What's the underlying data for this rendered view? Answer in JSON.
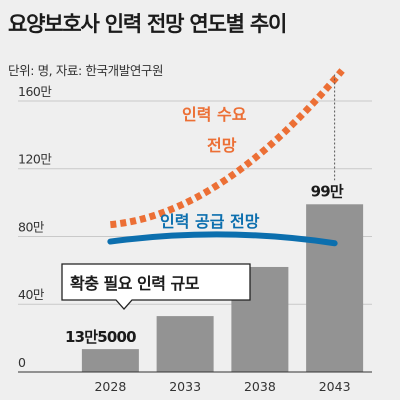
{
  "chart_data": {
    "type": "bar",
    "title": "요양보호사 인력 전망 연도별 추이",
    "subtitle": "단위: 명, 자료: 한국개발연구원",
    "categories": [
      "2028",
      "2033",
      "2038",
      "2043"
    ],
    "yticks": [
      "0",
      "40만",
      "80만",
      "120만",
      "160만"
    ],
    "ylim": [
      0,
      170
    ],
    "series": [
      {
        "name": "확충 필요 인력 규모",
        "kind": "bar",
        "values": [
          13.5,
          33,
          62,
          99
        ],
        "color": "#939393"
      },
      {
        "name": "인력 수요 전망",
        "kind": "line",
        "style": "dotted",
        "color": "#ec6f35",
        "x": [
          0,
          3.1
        ],
        "values": [
          87,
          178
        ]
      },
      {
        "name": "인력 공급 전망",
        "kind": "line",
        "color": "#0c6fae",
        "x": [
          0,
          1.5,
          3
        ],
        "values": [
          77,
          80,
          76
        ]
      }
    ],
    "labels": {
      "first_bar": "13만5000",
      "last_bar": "99만",
      "demand_line1": "인력 수요",
      "demand_line2": "전망",
      "supply": "인력 공급 전망",
      "callout": "확충 필요 인력 규모"
    },
    "grid": true
  }
}
